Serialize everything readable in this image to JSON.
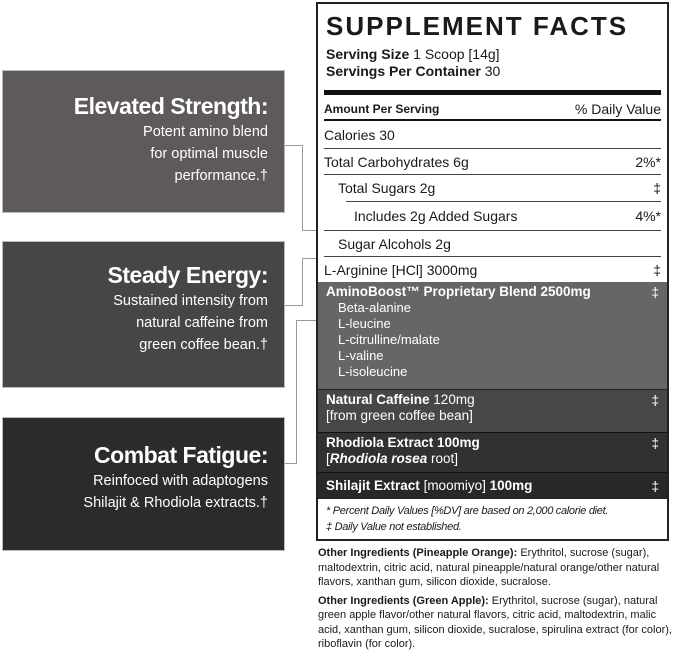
{
  "panels": [
    {
      "title": "Elevated Strength:",
      "lines": [
        "Potent amino blend",
        "for optimal muscle",
        "performance.†"
      ],
      "color": "#5e5a5a"
    },
    {
      "title": "Steady Energy:",
      "lines": [
        "Sustained intensity from",
        "natural caffeine from",
        "green coffee bean.†"
      ],
      "color": "#484545"
    },
    {
      "title": "Combat Fatigue:",
      "lines": [
        "Reinfoced with adaptogens",
        "Shilajit & Rhodiola extracts.†"
      ],
      "color": "#2d2a2a"
    }
  ],
  "label": {
    "title": "SUPPLEMENT FACTS",
    "serving_size_label": "Serving Size",
    "serving_size_value": "1 Scoop [14g]",
    "servings_label": "Servings Per Container",
    "servings_value": "30",
    "amount_header": "Amount Per Serving",
    "dv_header": "% Daily Value",
    "rows": [
      {
        "name": "Calories 30",
        "dv": ""
      },
      {
        "name": "Total Carbohydrates 6g",
        "dv": "2%*"
      },
      {
        "name": "Total Sugars 2g",
        "dv": "‡"
      },
      {
        "name": "Includes 2g Added Sugars",
        "dv": "4%*"
      },
      {
        "name": "Sugar Alcohols 2g",
        "dv": ""
      },
      {
        "name": "L-Arginine [HCl] 3000mg",
        "dv": "‡"
      }
    ],
    "blend": {
      "name": "AminoBoost™ Proprietary Blend 2500mg",
      "dv": "‡",
      "ingredients": [
        "Beta-alanine",
        "L-leucine",
        "L-citrulline/malate",
        "L-valine",
        "L-isoleucine"
      ]
    },
    "caffeine": {
      "name": "Natural Caffeine",
      "amount": "120mg",
      "source": "[from green coffee bean]",
      "dv": "‡"
    },
    "rhodiola": {
      "name": "Rhodiola Extract 100mg",
      "source_open": "[",
      "source_italic": "Rhodiola rosea",
      "source_rest": " root]",
      "dv": "‡"
    },
    "shilajit": {
      "name": "Shilajit Extract",
      "note": "[moomiyo]",
      "amount": "100mg",
      "dv": "‡"
    },
    "footnotes": [
      "* Percent Daily Values [%DV] are based on 2,000 calorie diet.",
      "‡ Daily Value not established."
    ]
  },
  "other_ingredients": [
    {
      "label": "Other Ingredients (Pineapple Orange):",
      "text": " Erythritol, sucrose (sugar), maltodextrin, citric acid, natural pineapple/natural orange/other natural flavors, xanthan gum, silicon dioxide, sucralose."
    },
    {
      "label": "Other Ingredients (Green Apple):",
      "text": " Erythritol, sucrose (sugar), natural green apple flavor/other natural flavors, citric acid, maltodextrin, malic acid, xanthan gum, silicon dioxide, sucralose, spirulina extract (for color), riboflavin (for color)."
    }
  ]
}
